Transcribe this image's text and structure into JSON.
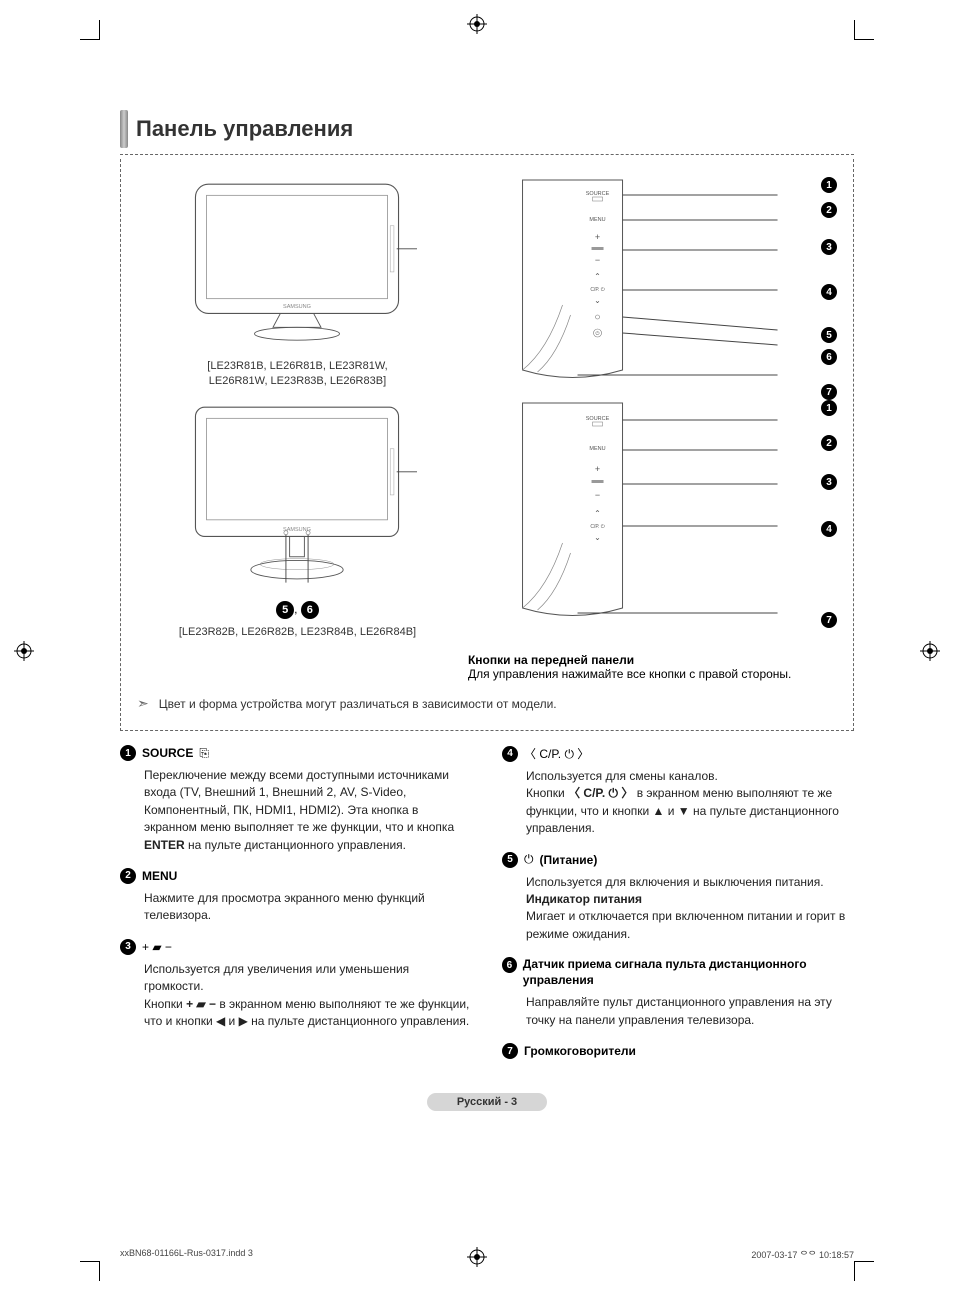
{
  "title": "Панель управления",
  "models_line1": "[LE23R81B, LE26R81B, LE23R81W,",
  "models_line2": "LE26R81W, LE23R83B, LE26R83B]",
  "models2": "[LE23R82B, LE26R82B, LE23R84B, LE26R84B]",
  "tv_brand": "SAMSUNG",
  "panel_btn_labels": {
    "source": "SOURCE",
    "menu": "MENU",
    "plus": "+",
    "minus": "−",
    "ch_up": "⌃",
    "cp": "C/P.",
    "ch_down": "⌄"
  },
  "callout": {
    "heading": "Кнопки на передней панели",
    "body": "Для управления нажимайте все кнопки с правой стороны."
  },
  "note": "Цвет и форма устройства могут различаться в зависимости от модели.",
  "items": [
    {
      "n": "1",
      "title": "SOURCE",
      "title_sym": "⎘",
      "body": "Переключение между всеми доступными источниками входа (TV, Внешний 1, Внешний 2, AV, S-Video, Компонентный, ПК, HDMI1, HDMI2). Эта кнопка в экранном меню выполняет те же функции, что и кнопка <b>ENTER</b> на пульте дистанционного управления."
    },
    {
      "n": "2",
      "title": "MENU",
      "body": "Нажмите для просмотра экранного меню функций телевизора."
    },
    {
      "n": "3",
      "title_sym": "+ ▰ −",
      "body": "Используется для увеличения или уменьшения громкости.<br>Кнопки <b>+ ▰ −</b> в экранном меню выполняют те же функции, что и кнопки ◀ и ▶ на пульте дистанционного управления."
    },
    {
      "n": "4",
      "title_sym": "〈 C/P. ⏻ 〉",
      "body": "Используется для смены каналов.<br>Кнопки <b>〈 C/P. ⏻ 〉</b> в экранном меню выполняют те же функции, что и кнопки ▲ и ▼ на пульте дистанционного управления."
    },
    {
      "n": "5",
      "title_sym": "⏻",
      "title": "(Питание)",
      "body": "Используется для включения и выключения питания.<br><b>Индикатор питания</b><br>Мигает и отключается при включенном питании и горит в режиме ожидания."
    },
    {
      "n": "6",
      "title": "Датчик приема сигнала пульта дистанционного управления",
      "body": "Направляйте пульт дистанционного управления на эту точку на панели управления телевизора."
    },
    {
      "n": "7",
      "title": "Громкоговорители"
    }
  ],
  "page_label": "Русский - 3",
  "footer_left": "xxBN68-01166L-Rus-0317.indd   3",
  "footer_right": "2007-03-17   ᄋᄋ 10:18:57",
  "colors": {
    "text": "#000000",
    "subtext": "#333333",
    "dash": "#666666",
    "page_pill": "#d6d6d6"
  }
}
